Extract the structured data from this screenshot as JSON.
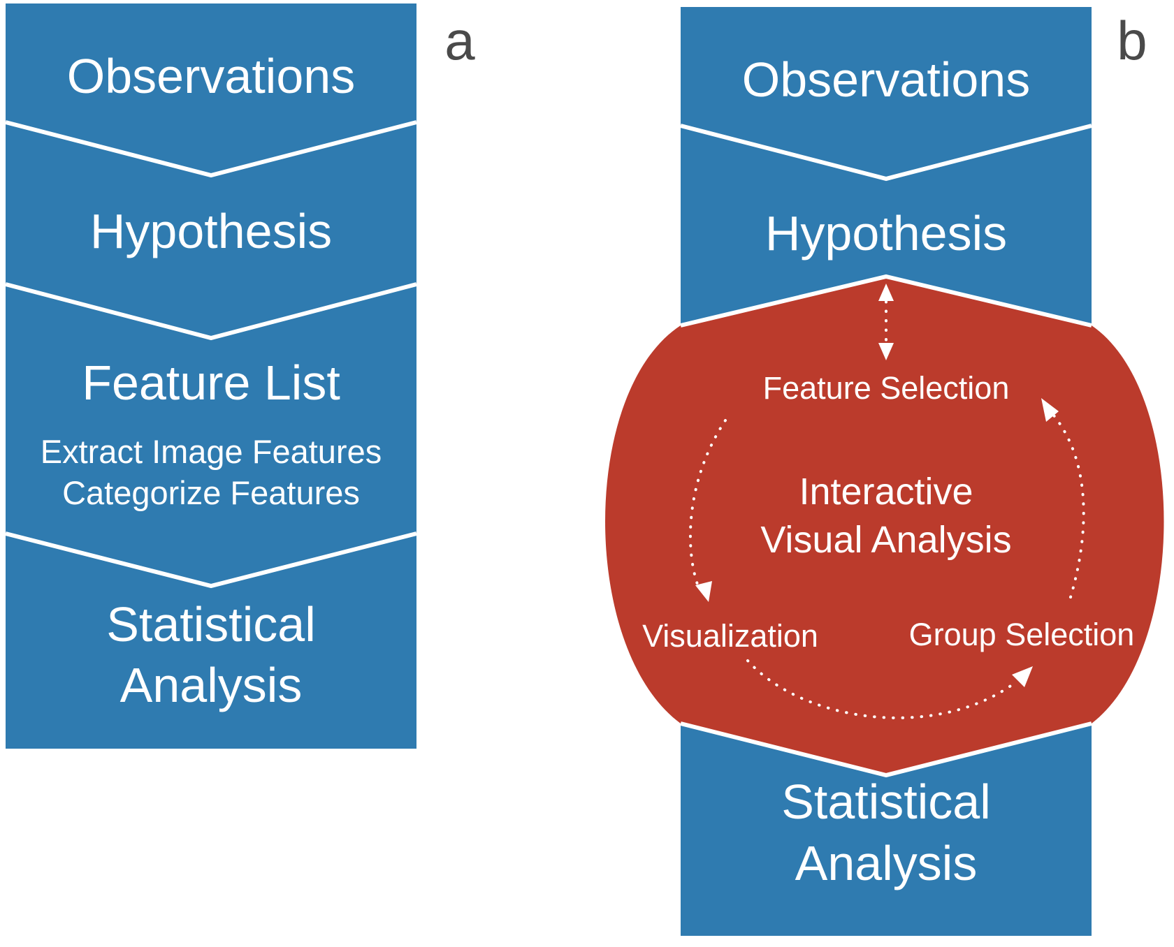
{
  "panel_a": {
    "letter": "a",
    "stages": [
      {
        "title": "Observations"
      },
      {
        "title": "Hypothesis"
      },
      {
        "title": "Feature List",
        "sub1": "Extract Image Features",
        "sub2": "Categorize Features"
      },
      {
        "title1": "Statistical",
        "title2": "Analysis"
      }
    ]
  },
  "panel_b": {
    "letter": "b",
    "stages": [
      {
        "title": "Observations"
      },
      {
        "title": "Hypothesis"
      },
      {
        "title1": "Statistical",
        "title2": "Analysis"
      }
    ],
    "cycle": {
      "title1": "Interactive",
      "title2": "Visual Analysis",
      "feature_selection": "Feature Selection",
      "visualization": "Visualization",
      "group_selection": "Group Selection"
    }
  },
  "colors": {
    "stage_blue": "#2f7bb0",
    "cycle_red": "#bb3b2c",
    "separator": "#ffffff",
    "letter": "#4a4a4a"
  }
}
